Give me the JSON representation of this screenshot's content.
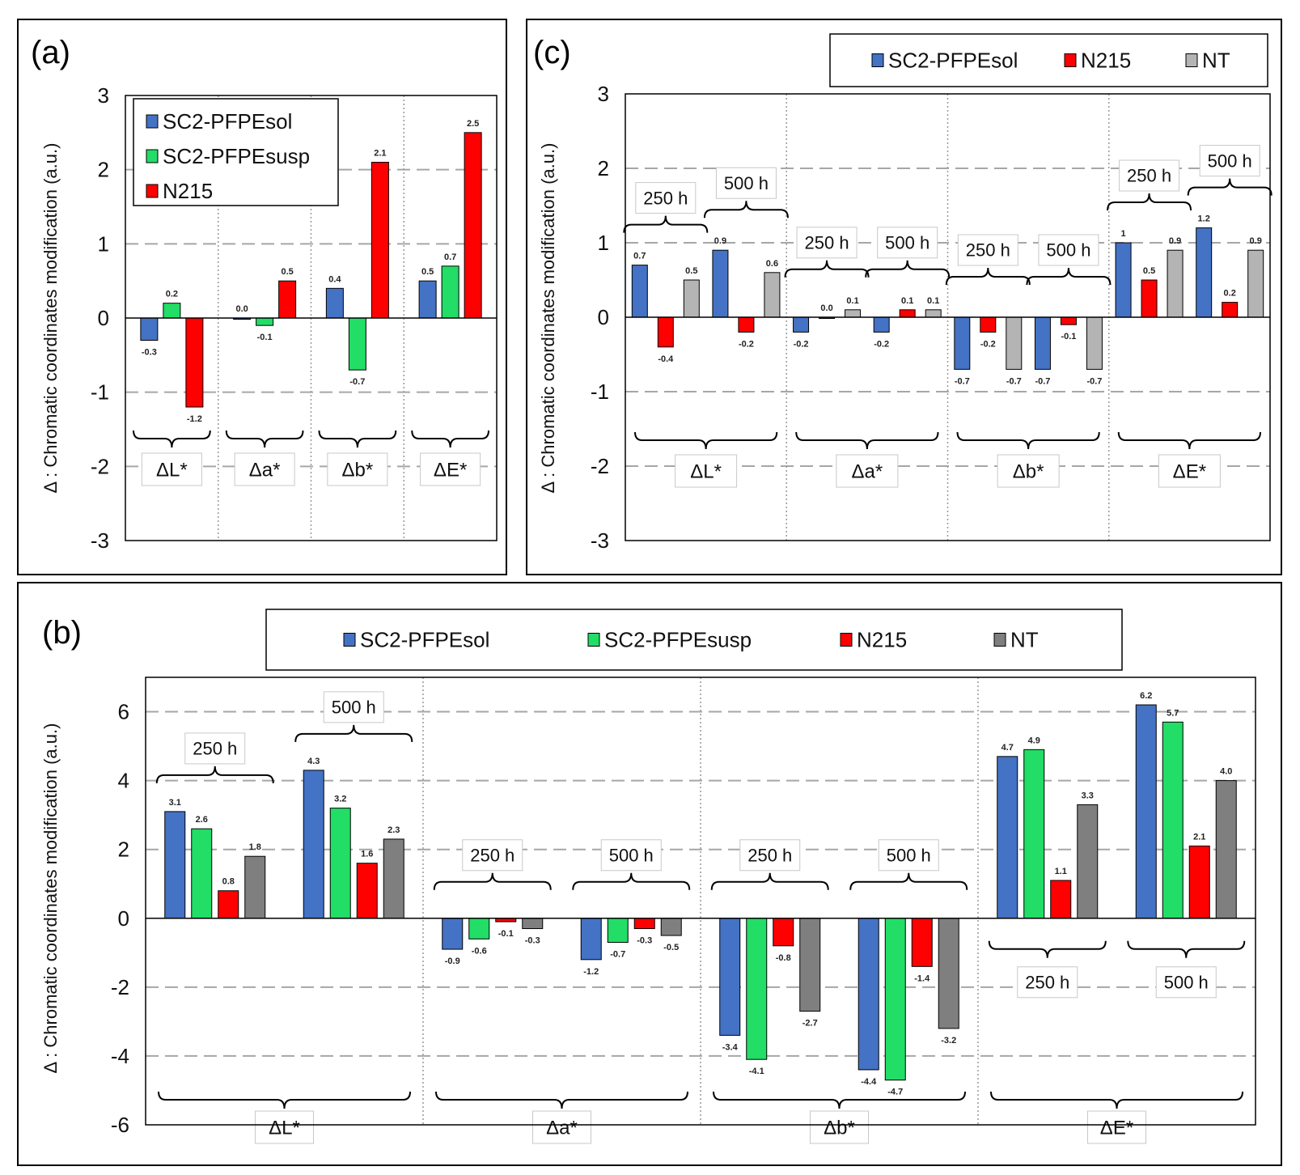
{
  "colors": {
    "SC2-PFPEsol": "#4472c4",
    "SC2-PFPEsusp": "#22dd66",
    "N215": "#ff0000",
    "NT_c": "#b4b4b4",
    "NT_b": "#7f7f7f",
    "grid": "#a6a6a6",
    "frame": "#000000"
  },
  "chart_data": [
    {
      "panel": "a",
      "panel_label": "(a)",
      "type": "bar",
      "ylabel": "Δ : Chromatic coordinates modification (a.u.)",
      "ylim": [
        -3,
        3
      ],
      "yticks": [
        -3,
        -2,
        -1,
        0,
        1,
        2,
        3
      ],
      "ytick_labels": [
        "-3",
        "-2",
        "-1",
        "0",
        "1",
        "2",
        "3"
      ],
      "legend": [
        "SC2-PFPEsol",
        "SC2-PFPEsusp",
        "N215"
      ],
      "legend_position": "top-left",
      "groups": [
        {
          "label": "ΔL*",
          "bars": [
            {
              "series": "SC2-PFPEsol",
              "value": -0.3,
              "label": "-0.3"
            },
            {
              "series": "SC2-PFPEsusp",
              "value": 0.2,
              "label": "0.2"
            },
            {
              "series": "N215",
              "value": -1.2,
              "label": "-1.2"
            }
          ]
        },
        {
          "label": "Δa*",
          "bars": [
            {
              "series": "SC2-PFPEsol",
              "value": 0.0,
              "label": "0.0"
            },
            {
              "series": "SC2-PFPEsusp",
              "value": -0.1,
              "label": "-0.1"
            },
            {
              "series": "N215",
              "value": 0.5,
              "label": "0.5"
            }
          ]
        },
        {
          "label": "Δb*",
          "bars": [
            {
              "series": "SC2-PFPEsol",
              "value": 0.4,
              "label": "0.4"
            },
            {
              "series": "SC2-PFPEsusp",
              "value": -0.7,
              "label": "-0.7"
            },
            {
              "series": "N215",
              "value": 2.1,
              "label": "2.1"
            }
          ]
        },
        {
          "label": "ΔE*",
          "bars": [
            {
              "series": "SC2-PFPEsol",
              "value": 0.5,
              "label": "0.5"
            },
            {
              "series": "SC2-PFPEsusp",
              "value": 0.7,
              "label": "0.7"
            },
            {
              "series": "N215",
              "value": 2.5,
              "label": "2.5"
            }
          ]
        }
      ]
    },
    {
      "panel": "c",
      "panel_label": "(c)",
      "type": "bar",
      "ylabel": "Δ : Chromatic coordinates modification (a.u.)",
      "ylim": [
        -3,
        3
      ],
      "yticks": [
        -3,
        -2,
        -1,
        0,
        1,
        2,
        3
      ],
      "ytick_labels": [
        "-3",
        "-2",
        "-1",
        "0",
        "1",
        "2",
        "3"
      ],
      "legend": [
        "SC2-PFPEsol",
        "N215",
        "NT"
      ],
      "legend_position": "top",
      "groups": [
        {
          "label": "ΔL*",
          "subgroups": [
            {
              "label": "250 h",
              "bars": [
                {
                  "series": "SC2-PFPEsol",
                  "value": 0.7,
                  "label": "0.7"
                },
                {
                  "series": "N215",
                  "value": -0.4,
                  "label": "-0.4"
                },
                {
                  "series": "NT",
                  "value": 0.5,
                  "label": "0.5"
                }
              ]
            },
            {
              "label": "500 h",
              "bars": [
                {
                  "series": "SC2-PFPEsol",
                  "value": 0.9,
                  "label": "0.9"
                },
                {
                  "series": "N215",
                  "value": -0.2,
                  "label": "-0.2"
                },
                {
                  "series": "NT",
                  "value": 0.6,
                  "label": "0.6"
                }
              ]
            }
          ]
        },
        {
          "label": "Δa*",
          "subgroups": [
            {
              "label": "250 h",
              "bars": [
                {
                  "series": "SC2-PFPEsol",
                  "value": -0.2,
                  "label": "-0.2"
                },
                {
                  "series": "N215",
                  "value": 0.0,
                  "label": "0.0"
                },
                {
                  "series": "NT",
                  "value": 0.1,
                  "label": "0.1"
                }
              ]
            },
            {
              "label": "500 h",
              "bars": [
                {
                  "series": "SC2-PFPEsol",
                  "value": -0.2,
                  "label": "-0.2"
                },
                {
                  "series": "N215",
                  "value": 0.1,
                  "label": "0.1"
                },
                {
                  "series": "NT",
                  "value": 0.1,
                  "label": "0.1"
                }
              ]
            }
          ]
        },
        {
          "label": "Δb*",
          "subgroups": [
            {
              "label": "250 h",
              "bars": [
                {
                  "series": "SC2-PFPEsol",
                  "value": -0.7,
                  "label": "-0.7"
                },
                {
                  "series": "N215",
                  "value": -0.2,
                  "label": "-0.2"
                },
                {
                  "series": "NT",
                  "value": -0.7,
                  "label": "-0.7"
                }
              ]
            },
            {
              "label": "500 h",
              "bars": [
                {
                  "series": "SC2-PFPEsol",
                  "value": -0.7,
                  "label": "-0.7"
                },
                {
                  "series": "N215",
                  "value": -0.1,
                  "label": "-0.1"
                },
                {
                  "series": "NT",
                  "value": -0.7,
                  "label": "-0.7"
                }
              ]
            }
          ]
        },
        {
          "label": "ΔE*",
          "subgroups": [
            {
              "label": "250 h",
              "bars": [
                {
                  "series": "SC2-PFPEsol",
                  "value": 1.0,
                  "label": "1"
                },
                {
                  "series": "N215",
                  "value": 0.5,
                  "label": "0.5"
                },
                {
                  "series": "NT",
                  "value": 0.9,
                  "label": "0.9"
                }
              ]
            },
            {
              "label": "500 h",
              "bars": [
                {
                  "series": "SC2-PFPEsol",
                  "value": 1.2,
                  "label": "1.2"
                },
                {
                  "series": "N215",
                  "value": 0.2,
                  "label": "0.2"
                },
                {
                  "series": "NT",
                  "value": 0.9,
                  "label": "0.9"
                }
              ]
            }
          ]
        }
      ]
    },
    {
      "panel": "b",
      "panel_label": "(b)",
      "type": "bar",
      "ylabel": "Δ : Chromatic coordinates modification (a.u.)",
      "ylim": [
        -6,
        7
      ],
      "yticks": [
        -6,
        -4,
        -2,
        0,
        2,
        4,
        6
      ],
      "ytick_labels": [
        "-6",
        "-4",
        "-2",
        "0",
        "2",
        "4",
        "6"
      ],
      "legend": [
        "SC2-PFPEsol",
        "SC2-PFPEsusp",
        "N215",
        "NT"
      ],
      "legend_position": "top",
      "groups": [
        {
          "label": "ΔL*",
          "subgroups": [
            {
              "label": "250 h",
              "bars": [
                {
                  "series": "SC2-PFPEsol",
                  "value": 3.1,
                  "label": "3.1"
                },
                {
                  "series": "SC2-PFPEsusp",
                  "value": 2.6,
                  "label": "2.6"
                },
                {
                  "series": "N215",
                  "value": 0.8,
                  "label": "0.8"
                },
                {
                  "series": "NT",
                  "value": 1.8,
                  "label": "1.8"
                }
              ]
            },
            {
              "label": "500 h",
              "bars": [
                {
                  "series": "SC2-PFPEsol",
                  "value": 4.3,
                  "label": "4.3"
                },
                {
                  "series": "SC2-PFPEsusp",
                  "value": 3.2,
                  "label": "3.2"
                },
                {
                  "series": "N215",
                  "value": 1.6,
                  "label": "1.6"
                },
                {
                  "series": "NT",
                  "value": 2.3,
                  "label": "2.3"
                }
              ]
            }
          ]
        },
        {
          "label": "Δa*",
          "subgroups": [
            {
              "label": "250 h",
              "bars": [
                {
                  "series": "SC2-PFPEsol",
                  "value": -0.9,
                  "label": "-0.9"
                },
                {
                  "series": "SC2-PFPEsusp",
                  "value": -0.6,
                  "label": "-0.6"
                },
                {
                  "series": "N215",
                  "value": -0.1,
                  "label": "-0.1"
                },
                {
                  "series": "NT",
                  "value": -0.3,
                  "label": "-0.3"
                }
              ]
            },
            {
              "label": "500 h",
              "bars": [
                {
                  "series": "SC2-PFPEsol",
                  "value": -1.2,
                  "label": "-1.2"
                },
                {
                  "series": "SC2-PFPEsusp",
                  "value": -0.7,
                  "label": "-0.7"
                },
                {
                  "series": "N215",
                  "value": -0.3,
                  "label": "-0.3"
                },
                {
                  "series": "NT",
                  "value": -0.5,
                  "label": "-0.5"
                }
              ]
            }
          ]
        },
        {
          "label": "Δb*",
          "subgroups": [
            {
              "label": "250 h",
              "bars": [
                {
                  "series": "SC2-PFPEsol",
                  "value": -3.4,
                  "label": "-3.4"
                },
                {
                  "series": "SC2-PFPEsusp",
                  "value": -4.1,
                  "label": "-4.1"
                },
                {
                  "series": "N215",
                  "value": -0.8,
                  "label": "-0.8"
                },
                {
                  "series": "NT",
                  "value": -2.7,
                  "label": "-2.7"
                }
              ]
            },
            {
              "label": "500 h",
              "bars": [
                {
                  "series": "SC2-PFPEsol",
                  "value": -4.4,
                  "label": "-4.4"
                },
                {
                  "series": "SC2-PFPEsusp",
                  "value": -4.7,
                  "label": "-4.7"
                },
                {
                  "series": "N215",
                  "value": -1.4,
                  "label": "-1.4"
                },
                {
                  "series": "NT",
                  "value": -3.2,
                  "label": "-3.2"
                }
              ]
            }
          ]
        },
        {
          "label": "ΔE*",
          "subgroups": [
            {
              "label": "250 h",
              "bars": [
                {
                  "series": "SC2-PFPEsol",
                  "value": 4.7,
                  "label": "4.7"
                },
                {
                  "series": "SC2-PFPEsusp",
                  "value": 4.9,
                  "label": "4.9"
                },
                {
                  "series": "N215",
                  "value": 1.1,
                  "label": "1.1"
                },
                {
                  "series": "NT",
                  "value": 3.3,
                  "label": "3.3"
                }
              ]
            },
            {
              "label": "500 h",
              "bars": [
                {
                  "series": "SC2-PFPEsol",
                  "value": 6.2,
                  "label": "6.2"
                },
                {
                  "series": "SC2-PFPEsusp",
                  "value": 5.7,
                  "label": "5.7"
                },
                {
                  "series": "N215",
                  "value": 2.1,
                  "label": "2.1"
                },
                {
                  "series": "NT",
                  "value": 4.0,
                  "label": "4.0"
                }
              ]
            }
          ]
        }
      ]
    }
  ]
}
